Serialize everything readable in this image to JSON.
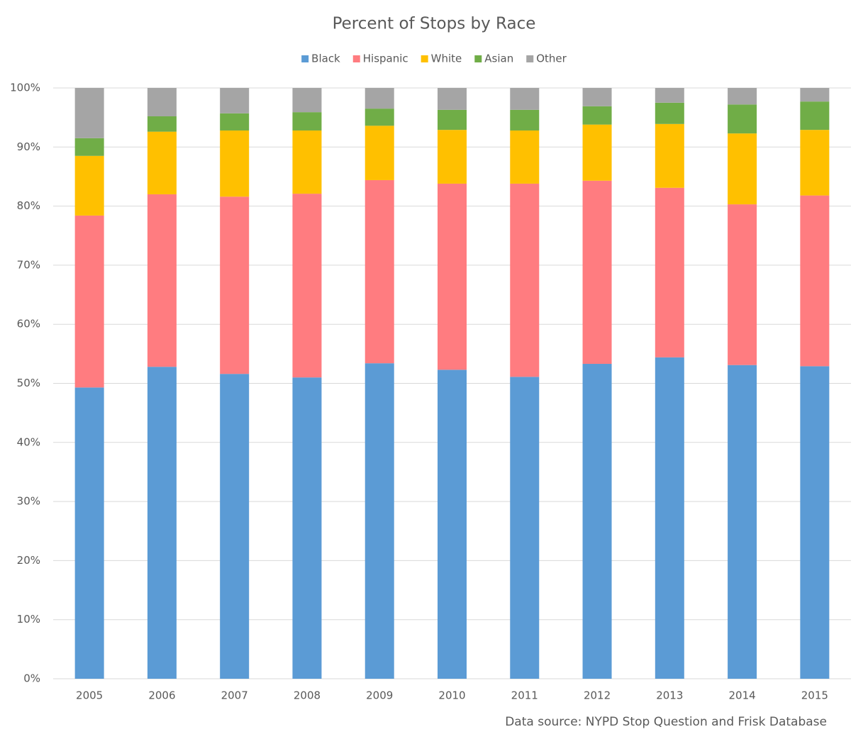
{
  "chart_data": {
    "type": "stacked-bar",
    "title": "Percent of Stops by Race",
    "note": "Data source: NYPD Stop Question and Frisk Database",
    "categories": [
      "2005",
      "2006",
      "2007",
      "2008",
      "2009",
      "2010",
      "2011",
      "2012",
      "2013",
      "2014",
      "2015"
    ],
    "series": [
      {
        "name": "Black",
        "color": "#5b9bd5",
        "values": [
          49.3,
          52.8,
          51.6,
          51.0,
          53.4,
          52.3,
          51.1,
          53.3,
          54.4,
          53.1,
          52.9
        ]
      },
      {
        "name": "Hispanic",
        "color": "#ff7c80",
        "values": [
          29.1,
          29.2,
          30.0,
          31.1,
          31.0,
          31.5,
          32.7,
          31.0,
          28.7,
          27.2,
          28.9
        ]
      },
      {
        "name": "White",
        "color": "#ffc000",
        "values": [
          10.1,
          10.6,
          11.2,
          10.7,
          9.2,
          9.1,
          9.0,
          9.5,
          10.8,
          12.0,
          11.1
        ]
      },
      {
        "name": "Asian",
        "color": "#70ad47",
        "values": [
          3.0,
          2.6,
          2.9,
          3.1,
          2.9,
          3.4,
          3.5,
          3.1,
          3.6,
          4.9,
          4.8
        ]
      },
      {
        "name": "Other",
        "color": "#a5a5a5",
        "values": [
          8.5,
          4.8,
          4.3,
          4.1,
          3.5,
          3.7,
          3.7,
          3.1,
          2.5,
          2.8,
          2.3
        ]
      }
    ],
    "ylim": [
      0,
      100
    ],
    "yticks": [
      {
        "value": 0,
        "label": "0%"
      },
      {
        "value": 10,
        "label": "10%"
      },
      {
        "value": 20,
        "label": "20%"
      },
      {
        "value": 30,
        "label": "30%"
      },
      {
        "value": 40,
        "label": "40%"
      },
      {
        "value": 50,
        "label": "50%"
      },
      {
        "value": 60,
        "label": "60%"
      },
      {
        "value": 70,
        "label": "70%"
      },
      {
        "value": 80,
        "label": "80%"
      },
      {
        "value": 90,
        "label": "90%"
      },
      {
        "value": 100,
        "label": "100%"
      }
    ],
    "grid": true,
    "legend": "top"
  }
}
